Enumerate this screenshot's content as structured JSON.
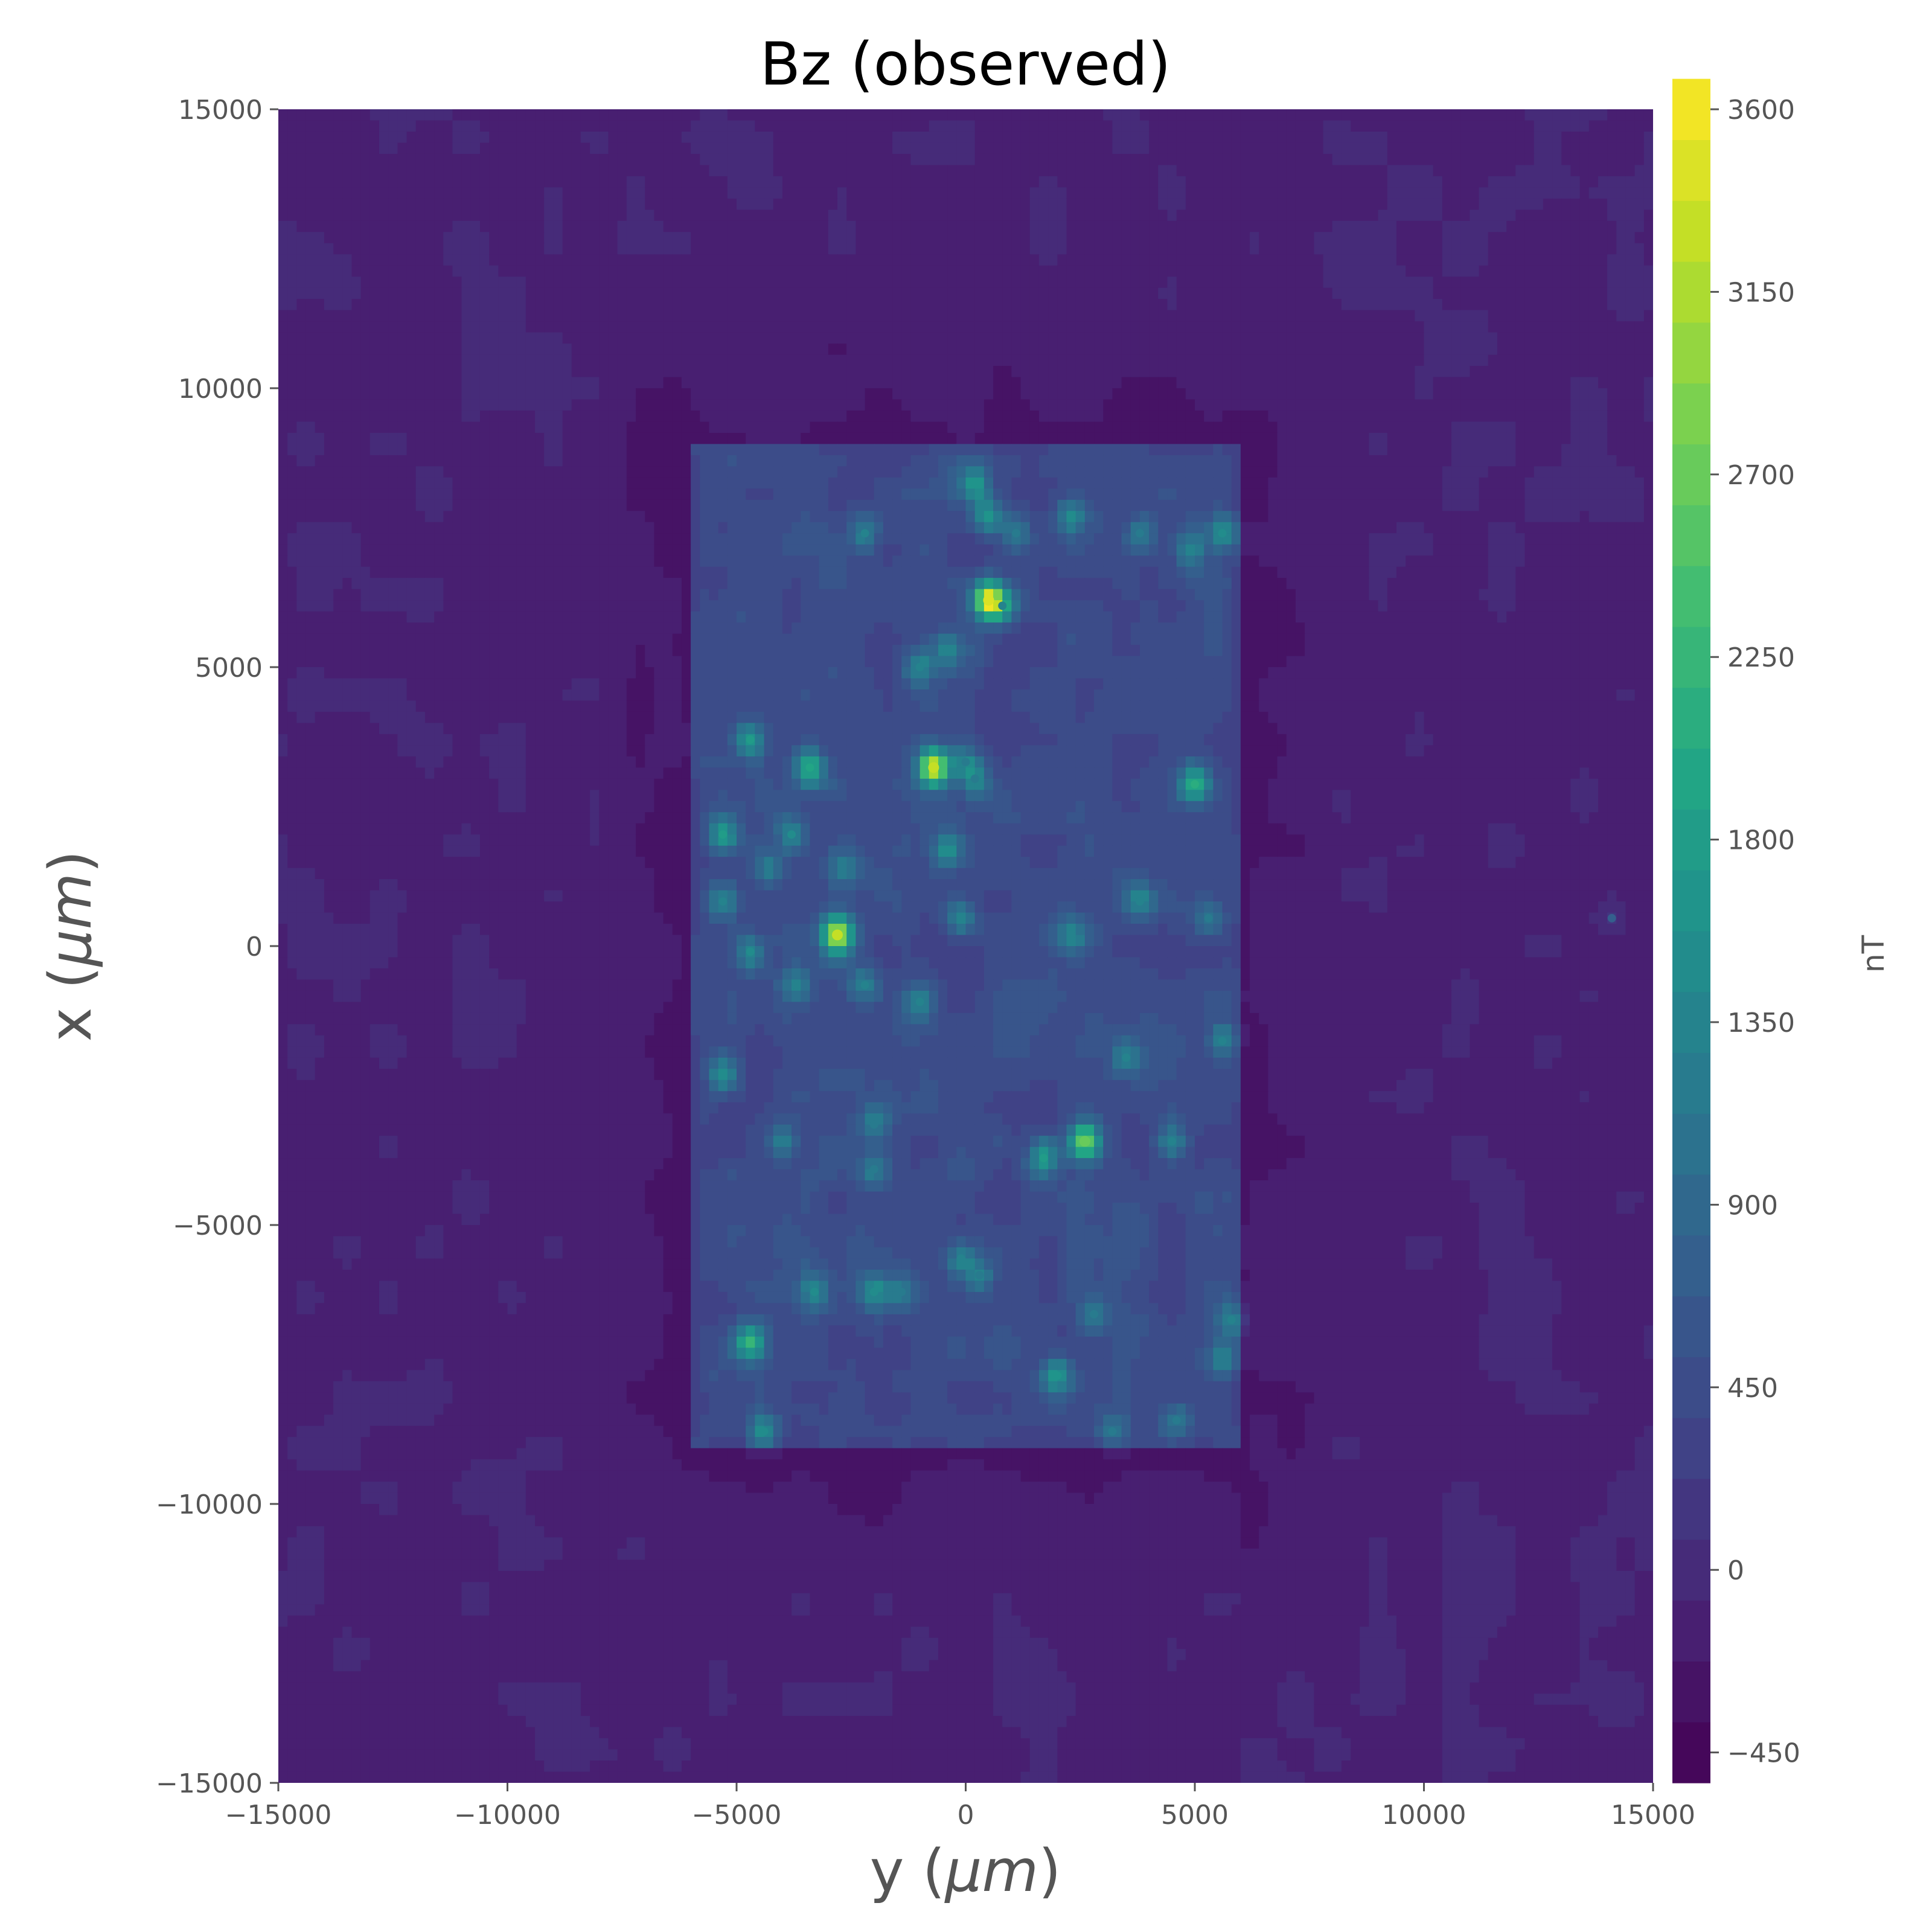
{
  "chart_data": {
    "type": "heatmap",
    "title": "Bz (observed)",
    "xlabel": "y (μm)",
    "ylabel": "x (μm)",
    "xlim": [
      -15000,
      15000
    ],
    "ylim": [
      -15000,
      15000
    ],
    "x_ticks": [
      -15000,
      -10000,
      -5000,
      0,
      5000,
      10000,
      15000
    ],
    "x_tick_labels": [
      "−15000",
      "−10000",
      "−5000",
      "0",
      "5000",
      "10000",
      "15000"
    ],
    "y_ticks": [
      15000,
      10000,
      5000,
      0,
      -5000,
      -10000,
      -15000
    ],
    "y_tick_labels": [
      "15000",
      "10000",
      "5000",
      "0",
      "−5000",
      "−10000",
      "−15000"
    ],
    "colormap": "viridis",
    "colorbar": {
      "label": "nT",
      "vmin": -525,
      "vmax": 3600,
      "level_step": 150,
      "ticks": [
        3600,
        3150,
        2700,
        2250,
        1800,
        1350,
        900,
        450,
        0,
        -450
      ],
      "tick_labels": [
        "3600",
        "3150",
        "2700",
        "2250",
        "1800",
        "1350",
        "900",
        "450",
        "0",
        "−450"
      ]
    },
    "field": {
      "background_nT": -100,
      "sample_region": {
        "y_range": [
          -6000,
          6000
        ],
        "x_range": [
          -9000,
          9000
        ],
        "level_nT": 420
      },
      "halo_nT": -300,
      "noise_amplitude_nT": 60
    },
    "hotspots": [
      {
        "y": 500,
        "x": 6200,
        "value": 3450
      },
      {
        "y": -700,
        "x": 3200,
        "value": 3350
      },
      {
        "y": -2800,
        "x": 200,
        "value": 3300
      },
      {
        "y": 2600,
        "x": -3500,
        "value": 2700
      },
      {
        "y": -4700,
        "x": -7100,
        "value": 2200
      },
      {
        "y": 5000,
        "x": 2900,
        "value": 2100
      },
      {
        "y": -3400,
        "x": 3200,
        "value": 2000
      },
      {
        "y": -5300,
        "x": 2000,
        "value": 1850
      },
      {
        "y": -4700,
        "x": 3700,
        "value": 1750
      },
      {
        "y": 1700,
        "x": -3800,
        "value": 1800
      },
      {
        "y": 2000,
        "x": -7700,
        "value": 1650
      },
      {
        "y": 200,
        "x": 8300,
        "value": 1600
      },
      {
        "y": 500,
        "x": 7700,
        "value": 1600
      },
      {
        "y": 2300,
        "x": 7700,
        "value": 1500
      },
      {
        "y": 5600,
        "x": 7400,
        "value": 1500
      },
      {
        "y": -5300,
        "x": -2300,
        "value": 1550
      },
      {
        "y": -4400,
        "x": -8700,
        "value": 1500
      },
      {
        "y": -3300,
        "x": -6200,
        "value": 1450
      },
      {
        "y": -2000,
        "x": -6200,
        "value": 1450
      },
      {
        "y": -5300,
        "x": 800,
        "value": 1400
      },
      {
        "y": -4700,
        "x": -100,
        "value": 1450
      },
      {
        "y": -3800,
        "x": 2000,
        "value": 1450
      },
      {
        "y": -2200,
        "x": 7400,
        "value": 1300
      },
      {
        "y": -1000,
        "x": 5000,
        "value": 1400
      },
      {
        "y": -400,
        "x": 5300,
        "value": 1300
      },
      {
        "y": -400,
        "x": 1700,
        "value": 1450
      },
      {
        "y": -100,
        "x": 500,
        "value": 1400
      },
      {
        "y": 2300,
        "x": 200,
        "value": 1350
      },
      {
        "y": 3800,
        "x": 800,
        "value": 1350
      },
      {
        "y": 5600,
        "x": -1700,
        "value": 1400
      },
      {
        "y": 3500,
        "x": -2000,
        "value": 1300
      },
      {
        "y": 4500,
        "x": -3500,
        "value": 1300
      },
      {
        "y": -2200,
        "x": -700,
        "value": 1350
      },
      {
        "y": -1000,
        "x": -1000,
        "value": 1300
      },
      {
        "y": -3700,
        "x": -700,
        "value": 1300
      },
      {
        "y": -4300,
        "x": 1400,
        "value": 1250
      },
      {
        "y": -2700,
        "x": 1400,
        "value": 1250
      },
      {
        "y": 4900,
        "x": 7100,
        "value": 1300
      },
      {
        "y": 3800,
        "x": 7400,
        "value": 1250
      },
      {
        "y": 1100,
        "x": 7400,
        "value": 1200
      },
      {
        "y": -100,
        "x": -5600,
        "value": 1300
      },
      {
        "y": 300,
        "x": -5900,
        "value": 1250
      },
      {
        "y": 800,
        "x": 6100,
        "value": 1350
      },
      {
        "y": -4000,
        "x": -3500,
        "value": 1200
      },
      {
        "y": -2000,
        "x": -4000,
        "value": 1200
      },
      {
        "y": -2000,
        "x": -3200,
        "value": 1150
      },
      {
        "y": 5800,
        "x": -6700,
        "value": 1300
      },
      {
        "y": 5600,
        "x": -7400,
        "value": 1250
      },
      {
        "y": 3200,
        "x": -8700,
        "value": 1200
      },
      {
        "y": 4600,
        "x": -8500,
        "value": 1200
      },
      {
        "y": 2800,
        "x": -6600,
        "value": 1200
      },
      {
        "y": 200,
        "x": 3000,
        "value": 1250
      },
      {
        "y": 0,
        "x": 3300,
        "value": 1200
      },
      {
        "y": 5300,
        "x": 500,
        "value": 1150
      },
      {
        "y": -1400,
        "x": -6200,
        "value": 1150
      },
      {
        "y": 14100,
        "x": 500,
        "value": 700
      }
    ]
  }
}
